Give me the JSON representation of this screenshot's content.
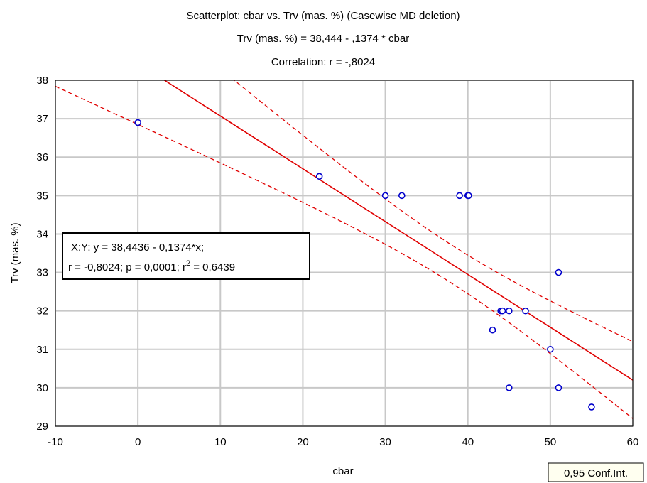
{
  "chart_data": {
    "type": "scatter",
    "title_lines": [
      "Scatterplot: cbar     vs. Trv (mas. %) (Casewise MD deletion)",
      "Trv (mas. %) = 38,444 - ,1374  * cbar",
      "Correlation: r = -,8024"
    ],
    "xlabel": "cbar",
    "ylabel": "Trv (mas. %)",
    "xlim": [
      -10,
      60
    ],
    "ylim": [
      29,
      38
    ],
    "xticks": [
      -10,
      0,
      10,
      20,
      30,
      40,
      50,
      60
    ],
    "yticks": [
      29,
      30,
      31,
      32,
      33,
      34,
      35,
      36,
      37,
      38
    ],
    "grid": true,
    "points": [
      {
        "x": 0,
        "y": 36.9
      },
      {
        "x": 22,
        "y": 35.5
      },
      {
        "x": 30,
        "y": 35
      },
      {
        "x": 32,
        "y": 35
      },
      {
        "x": 39,
        "y": 35
      },
      {
        "x": 40,
        "y": 35
      },
      {
        "x": 40.1,
        "y": 35
      },
      {
        "x": 51,
        "y": 33
      },
      {
        "x": 44,
        "y": 32
      },
      {
        "x": 44.2,
        "y": 32
      },
      {
        "x": 45,
        "y": 32
      },
      {
        "x": 47,
        "y": 32
      },
      {
        "x": 43,
        "y": 31.5
      },
      {
        "x": 50,
        "y": 31
      },
      {
        "x": 45,
        "y": 30
      },
      {
        "x": 51,
        "y": 30
      },
      {
        "x": 55,
        "y": 29.5
      }
    ],
    "regression": {
      "intercept": 38.4436,
      "slope": -0.1374
    },
    "confidence_band": {
      "level": 0.95,
      "mean_x": 38.1,
      "n": 17,
      "sxx": 2650,
      "s": 0.96,
      "t": 2.131
    },
    "stats_box": {
      "line1": "X:Y:   y = 38,4436 - 0,1374*x;",
      "line2_prefix": "r = -0,8024; p = 0,0001; r",
      "line2_sup": "2",
      "line2_suffix": " = 0,6439"
    },
    "legend_label": "0,95 Conf.Int.",
    "colors": {
      "point": "#0000cc",
      "regression": "#e00000",
      "confidence": "#e00000",
      "grid": "#c8c8c8"
    }
  }
}
